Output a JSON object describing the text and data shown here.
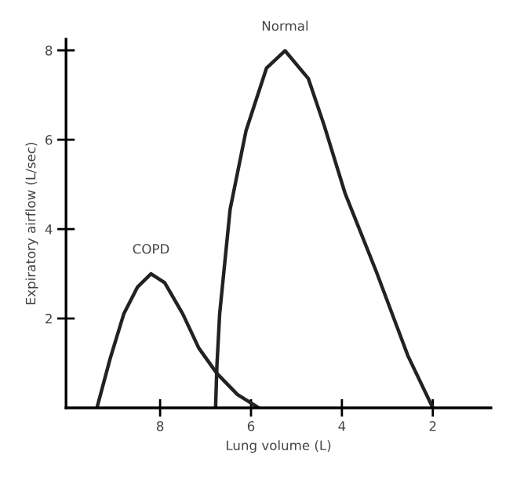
{
  "chart_data": {
    "type": "line",
    "xlabel": "Lung volume (L)",
    "ylabel": "Expiratory airflow (L/sec)",
    "xlim": [
      10.07,
      0.72
    ],
    "xticks": [
      8,
      6,
      4,
      2
    ],
    "ylim": [
      0,
      8.25
    ],
    "yticks": [
      2,
      4,
      6,
      8
    ],
    "grid": false,
    "legend": false,
    "marker": "none",
    "line_style": "solid",
    "series": [
      {
        "name": "COPD",
        "color": "#222222",
        "x": [
          9.39,
          9.1,
          8.8,
          8.5,
          8.2,
          7.9,
          7.5,
          7.15,
          6.75,
          6.3,
          5.83
        ],
        "values": [
          0,
          1.1,
          2.1,
          2.7,
          3.0,
          2.8,
          2.1,
          1.34,
          0.77,
          0.3,
          0
        ]
      },
      {
        "name": "Normal",
        "color": "#222222",
        "x": [
          6.78,
          6.75,
          6.69,
          6.46,
          6.11,
          5.66,
          5.25,
          4.74,
          4.39,
          3.93,
          3.24,
          2.55,
          2.0
        ],
        "values": [
          0,
          0.94,
          2.1,
          4.44,
          6.2,
          7.6,
          7.99,
          7.37,
          6.32,
          4.8,
          3.04,
          1.17,
          0
        ]
      }
    ]
  }
}
